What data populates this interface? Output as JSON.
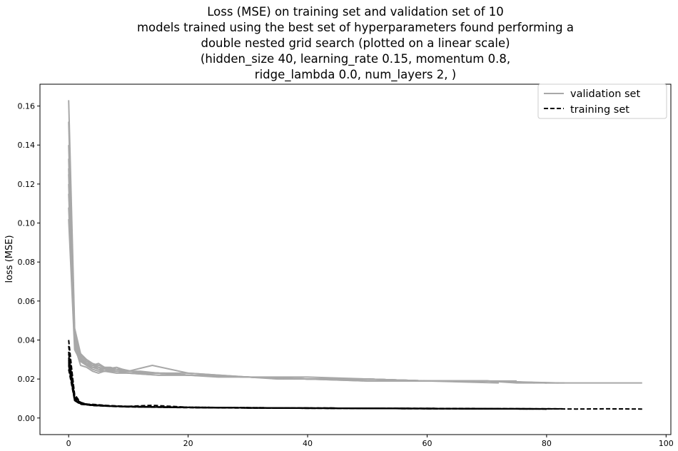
{
  "chart_data": {
    "type": "line",
    "title_lines": [
      "Loss (MSE) on training set and validation set of 10",
      "models trained using the best set of hyperparameters found performing a",
      "double nested grid search (plotted on a linear scale)",
      "(hidden_size 40, learning_rate 0.15, momentum 0.8,",
      "ridge_lambda 0.0, num_layers 2, )"
    ],
    "xlabel": "",
    "ylabel": "loss (MSE)",
    "xlim": [
      -4.8,
      100.8
    ],
    "ylim": [
      -0.0085,
      0.1712
    ],
    "xticks": [
      0,
      20,
      40,
      60,
      80,
      100
    ],
    "xtick_labels": [
      "0",
      "20",
      "40",
      "60",
      "80",
      "100"
    ],
    "yticks": [
      0.0,
      0.02,
      0.04,
      0.06,
      0.08,
      0.1,
      0.12,
      0.14,
      0.16
    ],
    "ytick_labels": [
      "0.00",
      "0.02",
      "0.04",
      "0.06",
      "0.08",
      "0.10",
      "0.12",
      "0.14",
      "0.16"
    ],
    "grid": false,
    "legend": {
      "position": "top-right",
      "entries": [
        {
          "label": "validation set",
          "style": "solid",
          "color": "#a8a8a8"
        },
        {
          "label": "training set",
          "style": "dashed",
          "color": "#000000"
        }
      ]
    },
    "series": [
      {
        "group": "validation",
        "color": "#a8a8a8",
        "style": "solid",
        "x": [
          0,
          1,
          2,
          3,
          4,
          5,
          6,
          7,
          8,
          10,
          12,
          15,
          20,
          25,
          30,
          35,
          40,
          45,
          50,
          55,
          60,
          65,
          70,
          75,
          80,
          85,
          90,
          96
        ],
        "y": [
          0.163,
          0.046,
          0.033,
          0.03,
          0.028,
          0.027,
          0.026,
          0.026,
          0.025,
          0.024,
          0.024,
          0.023,
          0.022,
          0.021,
          0.021,
          0.02,
          0.02,
          0.02,
          0.019,
          0.019,
          0.019,
          0.019,
          0.019,
          0.018,
          0.018,
          0.018,
          0.018,
          0.018
        ]
      },
      {
        "group": "validation",
        "color": "#a8a8a8",
        "style": "solid",
        "x": [
          0,
          1,
          2,
          3,
          4,
          5,
          6,
          8,
          10,
          14,
          20,
          30,
          40,
          50,
          60,
          70,
          80,
          83
        ],
        "y": [
          0.128,
          0.042,
          0.031,
          0.028,
          0.027,
          0.028,
          0.026,
          0.025,
          0.024,
          0.027,
          0.023,
          0.021,
          0.02,
          0.02,
          0.019,
          0.019,
          0.018,
          0.018
        ]
      },
      {
        "group": "validation",
        "color": "#a8a8a8",
        "style": "solid",
        "x": [
          0,
          1,
          2,
          3,
          4,
          5,
          6,
          8,
          10,
          15,
          20,
          30,
          40,
          50,
          60,
          70,
          80
        ],
        "y": [
          0.12,
          0.038,
          0.03,
          0.027,
          0.026,
          0.025,
          0.025,
          0.024,
          0.024,
          0.023,
          0.022,
          0.021,
          0.02,
          0.02,
          0.019,
          0.019,
          0.018
        ]
      },
      {
        "group": "validation",
        "color": "#a8a8a8",
        "style": "solid",
        "x": [
          0,
          1,
          2,
          3,
          4,
          5,
          6,
          8,
          10,
          15,
          20,
          30,
          40,
          50,
          60,
          70,
          78
        ],
        "y": [
          0.102,
          0.035,
          0.029,
          0.027,
          0.025,
          0.024,
          0.024,
          0.023,
          0.023,
          0.022,
          0.022,
          0.021,
          0.02,
          0.019,
          0.019,
          0.019,
          0.018
        ]
      },
      {
        "group": "validation",
        "color": "#a8a8a8",
        "style": "solid",
        "x": [
          0,
          1,
          2,
          3,
          4,
          5,
          7,
          9,
          12,
          16,
          20,
          30,
          40,
          50,
          60,
          70,
          75
        ],
        "y": [
          0.152,
          0.044,
          0.032,
          0.029,
          0.027,
          0.026,
          0.025,
          0.025,
          0.023,
          0.023,
          0.022,
          0.021,
          0.02,
          0.02,
          0.019,
          0.019,
          0.019
        ]
      },
      {
        "group": "validation",
        "color": "#a8a8a8",
        "style": "solid",
        "x": [
          0,
          1,
          2,
          3,
          4,
          5,
          6,
          8,
          10,
          15,
          20,
          30,
          40,
          50,
          60,
          72
        ],
        "y": [
          0.115,
          0.04,
          0.033,
          0.029,
          0.028,
          0.026,
          0.025,
          0.026,
          0.024,
          0.023,
          0.023,
          0.021,
          0.02,
          0.02,
          0.019,
          0.018
        ]
      },
      {
        "group": "validation",
        "color": "#a8a8a8",
        "style": "solid",
        "x": [
          0,
          1,
          2,
          3,
          4,
          5,
          6,
          8,
          10,
          15,
          20,
          30,
          40,
          50,
          60,
          70,
          80
        ],
        "y": [
          0.108,
          0.037,
          0.027,
          0.026,
          0.024,
          0.023,
          0.024,
          0.025,
          0.024,
          0.023,
          0.022,
          0.021,
          0.021,
          0.02,
          0.019,
          0.019,
          0.018
        ]
      },
      {
        "group": "validation",
        "color": "#a8a8a8",
        "style": "solid",
        "x": [
          0,
          1,
          2,
          3,
          4,
          5,
          6,
          8,
          10,
          15,
          20,
          30,
          40,
          50,
          60,
          68
        ],
        "y": [
          0.14,
          0.043,
          0.031,
          0.028,
          0.026,
          0.025,
          0.024,
          0.024,
          0.023,
          0.022,
          0.022,
          0.021,
          0.02,
          0.02,
          0.019,
          0.019
        ]
      },
      {
        "group": "validation",
        "color": "#a8a8a8",
        "style": "solid",
        "x": [
          0,
          1,
          2,
          3,
          4,
          5,
          6,
          8,
          10,
          15,
          20,
          30,
          40,
          50,
          60,
          70,
          82
        ],
        "y": [
          0.125,
          0.041,
          0.03,
          0.028,
          0.026,
          0.026,
          0.025,
          0.024,
          0.024,
          0.023,
          0.022,
          0.021,
          0.02,
          0.019,
          0.019,
          0.019,
          0.018
        ]
      },
      {
        "group": "validation",
        "color": "#a8a8a8",
        "style": "solid",
        "x": [
          0,
          1,
          2,
          3,
          4,
          5,
          6,
          8,
          10,
          15,
          20,
          30,
          40,
          50,
          60,
          70,
          80
        ],
        "y": [
          0.133,
          0.039,
          0.029,
          0.027,
          0.026,
          0.025,
          0.024,
          0.024,
          0.023,
          0.023,
          0.022,
          0.021,
          0.02,
          0.02,
          0.019,
          0.019,
          0.018
        ]
      },
      {
        "group": "training",
        "color": "#000000",
        "style": "dashed",
        "x": [
          0,
          1,
          2,
          3,
          4,
          6,
          8,
          10,
          15,
          20,
          30,
          40,
          50,
          60,
          70,
          80,
          85,
          90,
          96
        ],
        "y": [
          0.04,
          0.011,
          0.008,
          0.007,
          0.007,
          0.0065,
          0.0062,
          0.006,
          0.0057,
          0.0055,
          0.0053,
          0.0051,
          0.005,
          0.0049,
          0.0048,
          0.0047,
          0.0046,
          0.0047,
          0.0046
        ]
      },
      {
        "group": "training",
        "color": "#000000",
        "style": "dashed",
        "x": [
          0,
          1,
          2,
          3,
          4,
          6,
          8,
          10,
          14,
          20,
          30,
          40,
          50,
          60,
          70,
          83
        ],
        "y": [
          0.031,
          0.01,
          0.008,
          0.007,
          0.0068,
          0.0064,
          0.006,
          0.006,
          0.0065,
          0.0055,
          0.0053,
          0.0051,
          0.005,
          0.0049,
          0.0048,
          0.0047
        ]
      },
      {
        "group": "training",
        "color": "#000000",
        "style": "dashed",
        "x": [
          0,
          1,
          2,
          3,
          4,
          6,
          8,
          10,
          15,
          20,
          30,
          40,
          50,
          60,
          70,
          80
        ],
        "y": [
          0.028,
          0.009,
          0.007,
          0.0068,
          0.0065,
          0.0062,
          0.006,
          0.0058,
          0.0056,
          0.0054,
          0.0052,
          0.005,
          0.0049,
          0.0048,
          0.0047,
          0.0046
        ]
      },
      {
        "group": "training",
        "color": "#000000",
        "style": "dashed",
        "x": [
          0,
          1,
          2,
          3,
          4,
          6,
          8,
          10,
          15,
          20,
          30,
          40,
          50,
          60,
          70,
          78
        ],
        "y": [
          0.025,
          0.009,
          0.0072,
          0.0068,
          0.0064,
          0.0061,
          0.0059,
          0.0057,
          0.0055,
          0.0053,
          0.0051,
          0.005,
          0.0049,
          0.0048,
          0.0047,
          0.0047
        ]
      },
      {
        "group": "training",
        "color": "#000000",
        "style": "dashed",
        "x": [
          0,
          1,
          2,
          3,
          4,
          6,
          8,
          10,
          15,
          20,
          30,
          40,
          50,
          60,
          70,
          75
        ],
        "y": [
          0.037,
          0.012,
          0.008,
          0.0072,
          0.0068,
          0.0064,
          0.0061,
          0.0059,
          0.0056,
          0.0054,
          0.0052,
          0.0051,
          0.005,
          0.0049,
          0.0048,
          0.0047
        ]
      },
      {
        "group": "training",
        "color": "#000000",
        "style": "dashed",
        "x": [
          0,
          1,
          2,
          3,
          4,
          6,
          8,
          10,
          15,
          20,
          30,
          40,
          50,
          60,
          72
        ],
        "y": [
          0.034,
          0.01,
          0.0078,
          0.007,
          0.0066,
          0.0063,
          0.006,
          0.0058,
          0.0056,
          0.0054,
          0.0052,
          0.0051,
          0.005,
          0.0049,
          0.0048
        ]
      },
      {
        "group": "training",
        "color": "#000000",
        "style": "dashed",
        "x": [
          0,
          1,
          2,
          3,
          4,
          6,
          8,
          10,
          15,
          20,
          30,
          40,
          50,
          60,
          70,
          80
        ],
        "y": [
          0.029,
          0.009,
          0.0074,
          0.0069,
          0.0066,
          0.0062,
          0.006,
          0.0058,
          0.0056,
          0.0054,
          0.0052,
          0.005,
          0.0049,
          0.0048,
          0.0047,
          0.0046
        ]
      },
      {
        "group": "training",
        "color": "#000000",
        "style": "dashed",
        "x": [
          0,
          1,
          2,
          3,
          4,
          6,
          8,
          10,
          15,
          20,
          30,
          40,
          50,
          60,
          68
        ],
        "y": [
          0.033,
          0.011,
          0.0079,
          0.0071,
          0.0067,
          0.0063,
          0.0061,
          0.0059,
          0.0057,
          0.0055,
          0.0053,
          0.0051,
          0.005,
          0.0049,
          0.0049
        ]
      },
      {
        "group": "training",
        "color": "#000000",
        "style": "dashed",
        "x": [
          0,
          1,
          2,
          3,
          4,
          6,
          8,
          10,
          15,
          20,
          30,
          40,
          50,
          60,
          70,
          82
        ],
        "y": [
          0.03,
          0.01,
          0.0076,
          0.0069,
          0.0066,
          0.0062,
          0.006,
          0.0058,
          0.0056,
          0.0054,
          0.0052,
          0.0051,
          0.005,
          0.0049,
          0.0048,
          0.0047
        ]
      },
      {
        "group": "training",
        "color": "#000000",
        "style": "dashed",
        "x": [
          0,
          1,
          2,
          3,
          4,
          6,
          8,
          10,
          15,
          20,
          30,
          40,
          50,
          60,
          70,
          80
        ],
        "y": [
          0.027,
          0.009,
          0.0073,
          0.0068,
          0.0065,
          0.0062,
          0.006,
          0.0058,
          0.0056,
          0.0054,
          0.0052,
          0.005,
          0.0049,
          0.0048,
          0.0047,
          0.0046
        ]
      }
    ]
  }
}
